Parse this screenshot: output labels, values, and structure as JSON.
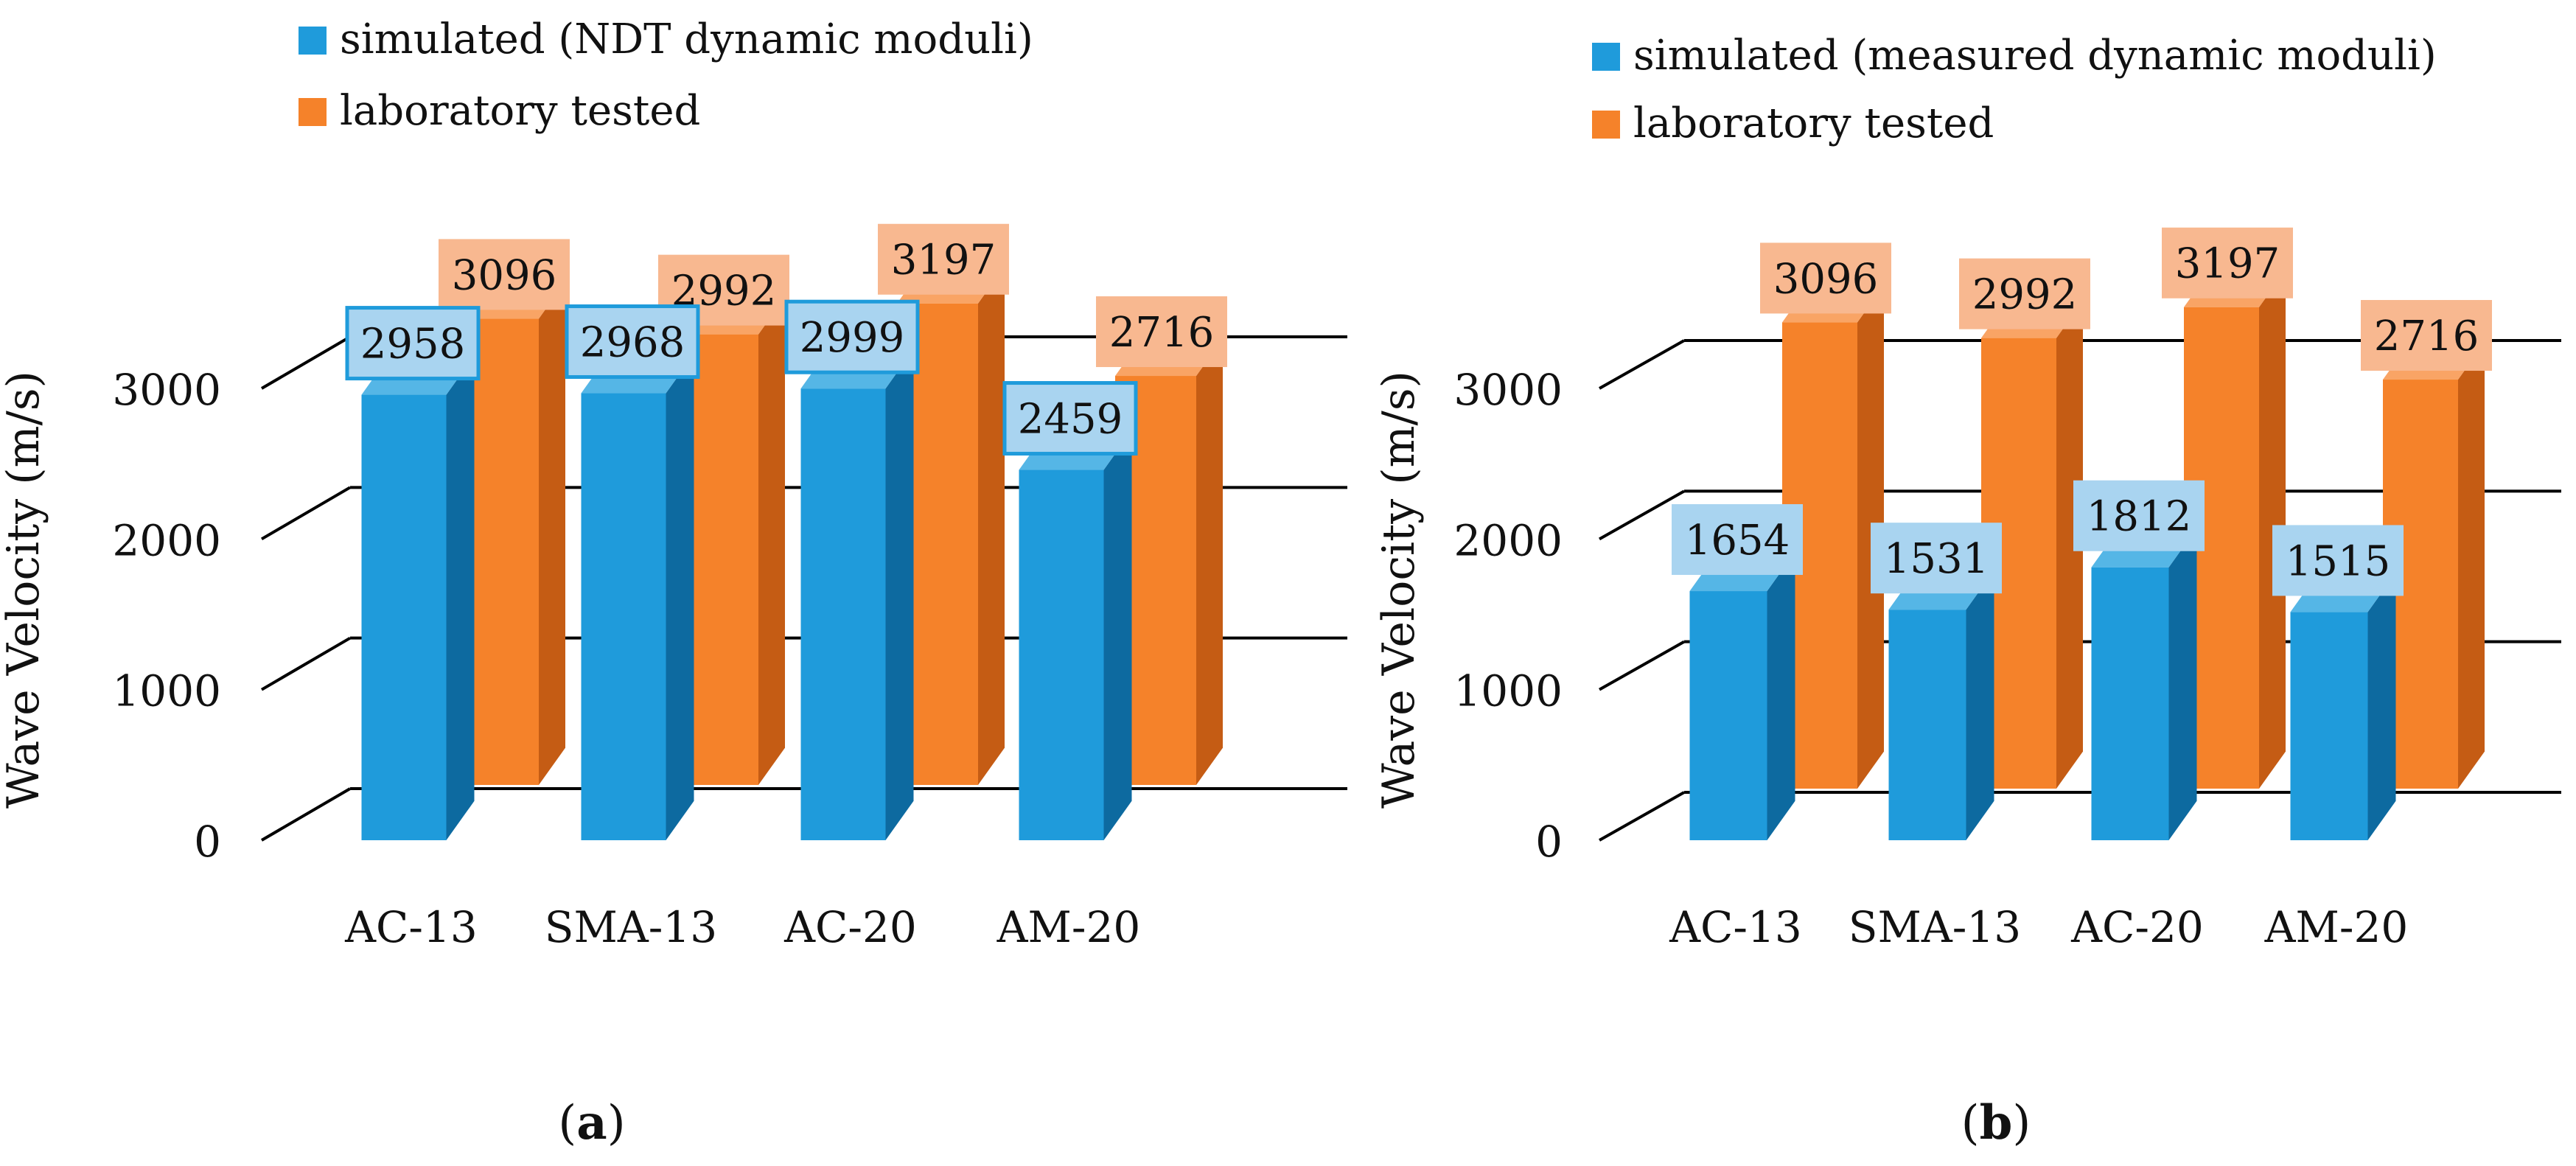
{
  "colors": {
    "simulated": "#1f9bdb",
    "simulated_side": "#0d6aa0",
    "simulated_top": "#55b6e6",
    "laboratory": "#f5822a",
    "laboratory_side": "#c55c14",
    "laboratory_top": "#f9a465",
    "simulated_label_fill": "#a9d4f0",
    "laboratory_label_fill": "#f8b890",
    "gridline": "#000000"
  },
  "chart_data": [
    {
      "panel": "(a)",
      "type": "bar",
      "style": "3d-clustered",
      "ylabel": "Wave Velocity (m/s)",
      "xlabel": "",
      "ylim": [
        0,
        3000
      ],
      "yticks": [
        0,
        1000,
        2000,
        3000
      ],
      "grid": true,
      "legend_position": "top",
      "categories": [
        "AC-13",
        "SMA-13",
        "AC-20",
        "AM-20"
      ],
      "series": [
        {
          "name": "simulated (NDT dynamic moduli)",
          "key": "simulated",
          "values": [
            2958,
            2968,
            2999,
            2459
          ],
          "labels": [
            "2958",
            "2968",
            "2999",
            "2459"
          ]
        },
        {
          "name": "laboratory tested",
          "key": "laboratory",
          "values": [
            3096,
            2992,
            3197,
            2716
          ],
          "labels": [
            "3096",
            "2992",
            "3197",
            "2716"
          ]
        }
      ]
    },
    {
      "panel": "(b)",
      "type": "bar",
      "style": "3d-clustered",
      "ylabel": "Wave Velocity (m/s)",
      "xlabel": "",
      "ylim": [
        0,
        3000
      ],
      "yticks": [
        0,
        1000,
        2000,
        3000
      ],
      "grid": true,
      "legend_position": "top",
      "categories": [
        "AC-13",
        "SMA-13",
        "AC-20",
        "AM-20"
      ],
      "series": [
        {
          "name": "simulated (measured dynamic moduli)",
          "key": "simulated",
          "values": [
            1654,
            1531,
            1812,
            1515
          ],
          "labels": [
            "1654",
            "1531",
            "1812",
            "1515"
          ]
        },
        {
          "name": "laboratory tested",
          "key": "laboratory",
          "values": [
            3096,
            2992,
            3197,
            2716
          ],
          "labels": [
            "3096",
            "2992",
            "3197",
            "2716"
          ]
        }
      ]
    }
  ]
}
